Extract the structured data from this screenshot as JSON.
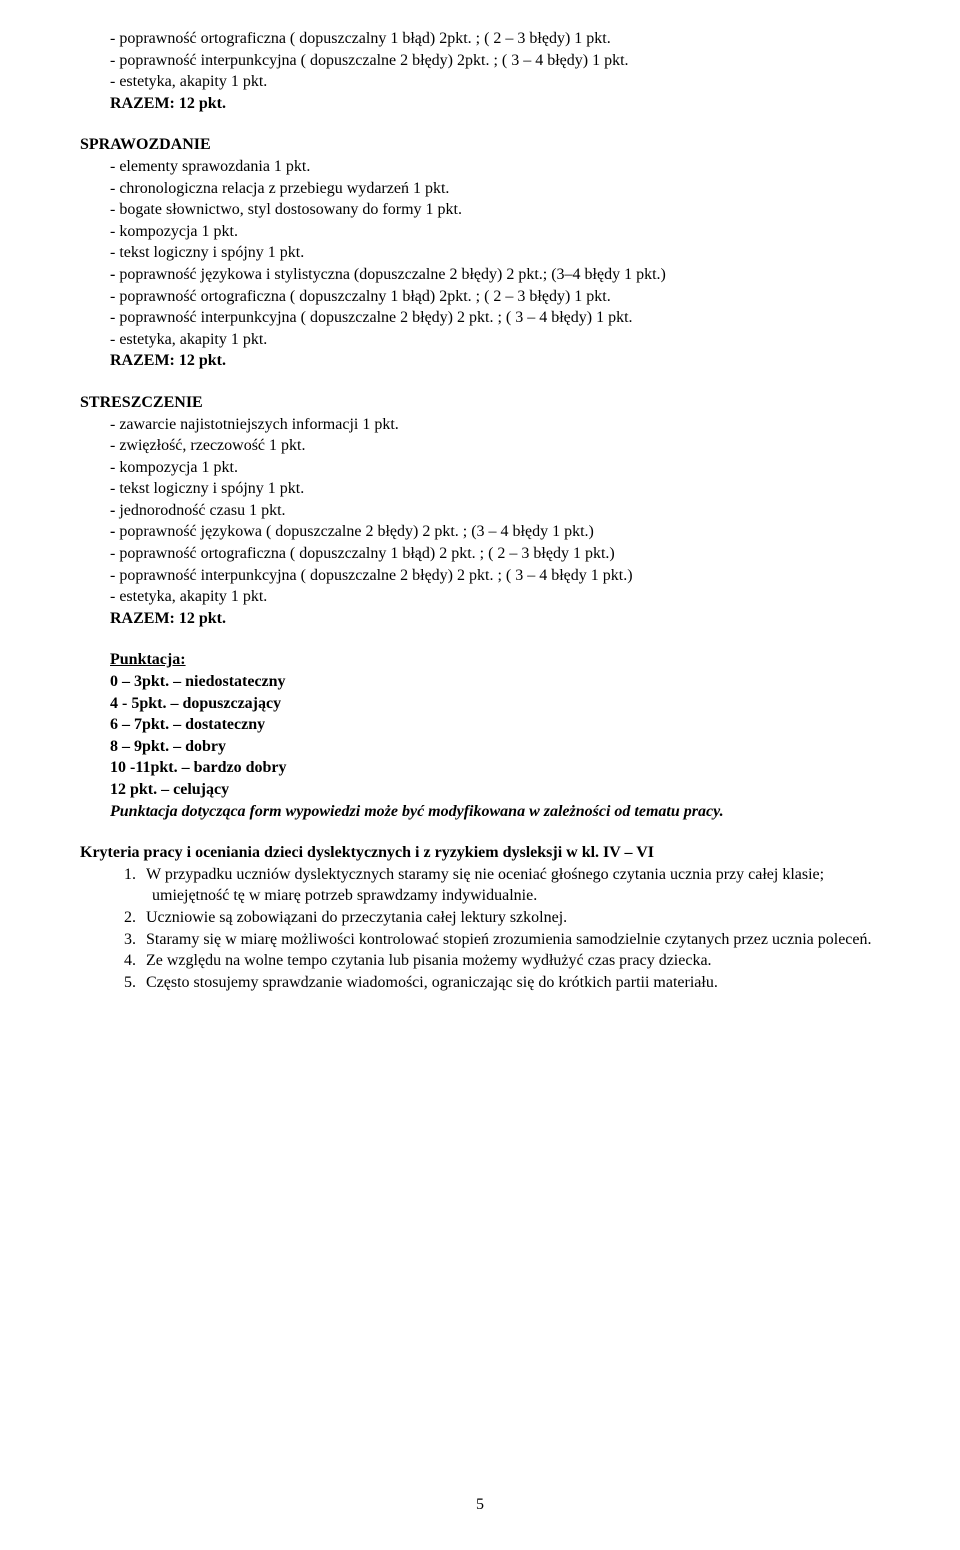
{
  "block1": {
    "l1": "- poprawność ortograficzna ( dopuszczalny 1 błąd) 2pkt. ; ( 2 – 3 błędy) 1 pkt.",
    "l2": "- poprawność interpunkcyjna ( dopuszczalne 2 błędy) 2pkt. ; ( 3 – 4 błędy) 1 pkt.",
    "l3": "- estetyka, akapity 1 pkt.",
    "l4": "RAZEM: 12 pkt."
  },
  "sprawozdanie": {
    "title": "SPRAWOZDANIE",
    "l1": "- elementy sprawozdania 1 pkt.",
    "l2": "- chronologiczna relacja z przebiegu wydarzeń 1 pkt.",
    "l3": "- bogate słownictwo, styl dostosowany do formy 1 pkt.",
    "l4": "- kompozycja 1 pkt.",
    "l5": "- tekst logiczny i spójny 1 pkt.",
    "l6a": "- ",
    "l6b": "poprawność językowa i stylistyczna (dopuszczalne 2 błędy) 2 pkt.; (3–4 błędy 1 pkt.)",
    "l7": "- poprawność ortograficzna ( dopuszczalny 1 błąd) 2pkt. ; ( 2 – 3 błędy) 1 pkt.",
    "l8": "- poprawność interpunkcyjna ( dopuszczalne 2 błędy) 2 pkt. ; ( 3 – 4 błędy) 1 pkt.",
    "l9": "- estetyka, akapity 1 pkt.",
    "l10": "RAZEM: 12 pkt."
  },
  "streszczenie": {
    "title": "STRESZCZENIE",
    "l1": "- zawarcie najistotniejszych informacji 1 pkt.",
    "l2": "- zwięzłość, rzeczowość 1 pkt.",
    "l3": "- kompozycja 1 pkt.",
    "l4": "- tekst logiczny i spójny 1 pkt.",
    "l5a": "- ",
    "l5b": "jednorodność czasu 1 pkt.",
    "l6a": "- ",
    "l6b": "poprawność językowa  ( dopuszczalne 2 błędy) 2 pkt. ; (3 – 4 błędy 1 pkt.)",
    "l7": "- poprawność ortograficzna ( dopuszczalny 1 błąd) 2 pkt. ; ( 2 – 3 błędy 1 pkt.)",
    "l8": "- poprawność interpunkcyjna ( dopuszczalne 2 błędy) 2 pkt. ; ( 3 – 4 błędy 1 pkt.)",
    "l9": "- estetyka, akapity 1 pkt.",
    "l10": "RAZEM: 12 pkt."
  },
  "punktacja": {
    "title": "Punktacja:",
    "l1": "0 – 3pkt. – niedostateczny",
    "l2": "4 - 5pkt.  – dopuszczający",
    "l3": "6 – 7pkt. – dostateczny",
    "l4": "8 – 9pkt. – dobry",
    "l5": "10 -11pkt. – bardzo dobry",
    "l6": "12 pkt.     – celujący",
    "note": "Punktacja dotycząca form wypowiedzi może być modyfikowana w zależności od tematu pracy."
  },
  "kryteria": {
    "title": "Kryteria pracy i oceniania dzieci dyslektycznych i z ryzykiem dysleksji w kl. IV – VI",
    "i1": "W przypadku uczniów dyslektycznych staramy się nie oceniać głośnego czytania ucznia przy całej klasie; umiejętność tę w miarę potrzeb sprawdzamy indywidualnie.",
    "i2": "Uczniowie są zobowiązani do przeczytania całej lektury szkolnej.",
    "i3": "Staramy się w miarę możliwości kontrolować stopień zrozumienia samodzielnie czytanych przez ucznia poleceń.",
    "i4": "Ze względu na wolne tempo czytania lub pisania możemy wydłużyć czas pracy dziecka.",
    "i5": "Często stosujemy sprawdzanie wiadomości, ograniczając się do krótkich partii materiału."
  },
  "pageNumber": "5"
}
